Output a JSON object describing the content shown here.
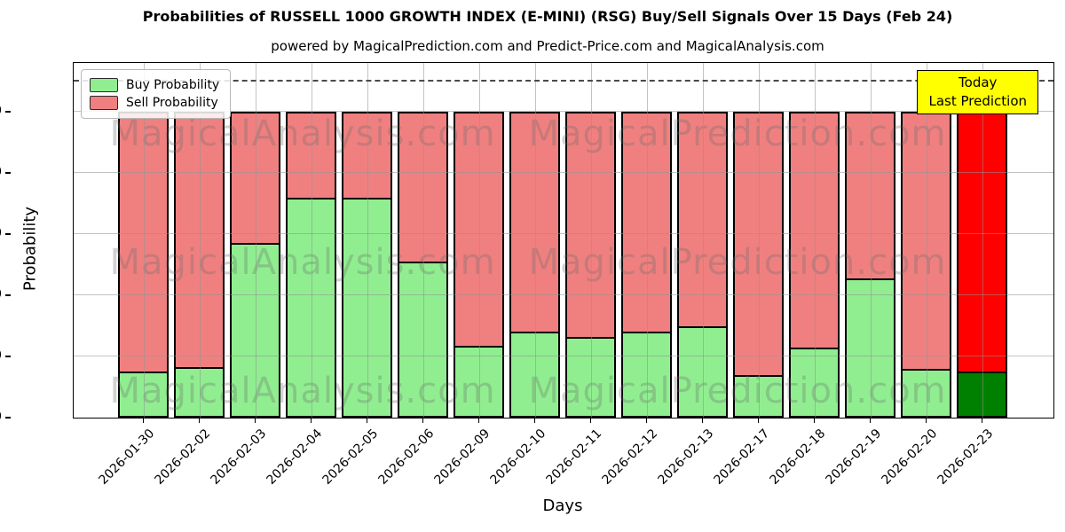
{
  "header": {
    "title": "Probabilities of RUSSELL 1000 GROWTH INDEX (E-MINI) (RSG) Buy/Sell Signals Over 15 Days (Feb 24)",
    "subtitle": "powered by MagicalPrediction.com and Predict-Price.com and MagicalAnalysis.com"
  },
  "chart_data": {
    "type": "bar",
    "stacked": true,
    "title": "Probabilities of RUSSELL 1000 GROWTH INDEX (E-MINI) (RSG) Buy/Sell Signals Over 15 Days (Feb 24)",
    "xlabel": "Days",
    "ylabel": "Probability",
    "ylim": [
      0,
      116
    ],
    "yticks": [
      0,
      20,
      40,
      60,
      80,
      100
    ],
    "grid": true,
    "dashed_line_y": 110,
    "categories": [
      "2026-01-30",
      "2026-02-02",
      "2026-02-03",
      "2026-02-04",
      "2026-02-05",
      "2026-02-06",
      "2026-02-09",
      "2026-02-10",
      "2026-02-11",
      "2026-02-12",
      "2026-02-13",
      "2026-02-17",
      "2026-02-18",
      "2026-02-19",
      "2026-02-20",
      "2026-02-23"
    ],
    "series": [
      {
        "name": "Buy Probability",
        "color": "#90ee90",
        "values": [
          15,
          16.5,
          57,
          72,
          72,
          51,
          23.5,
          28,
          26.5,
          28,
          30,
          14,
          23,
          45.5,
          16,
          15
        ]
      },
      {
        "name": "Sell Probability",
        "color": "#f08080",
        "values": [
          85,
          83.5,
          43,
          28,
          28,
          49,
          76.5,
          72,
          73.5,
          72,
          70,
          86,
          77,
          54.5,
          84,
          85
        ]
      }
    ],
    "today_index": 15,
    "today_colors": {
      "buy": "#008000",
      "sell": "#ff0000"
    },
    "legend_position": "upper left",
    "annotation_box": {
      "lines": [
        "Today",
        "Last Prediction"
      ],
      "bg_color": "#ffff00"
    },
    "watermarks": [
      "MagicalAnalysis.com",
      "MagicalPrediction.com"
    ],
    "edge_color": "#000000"
  }
}
